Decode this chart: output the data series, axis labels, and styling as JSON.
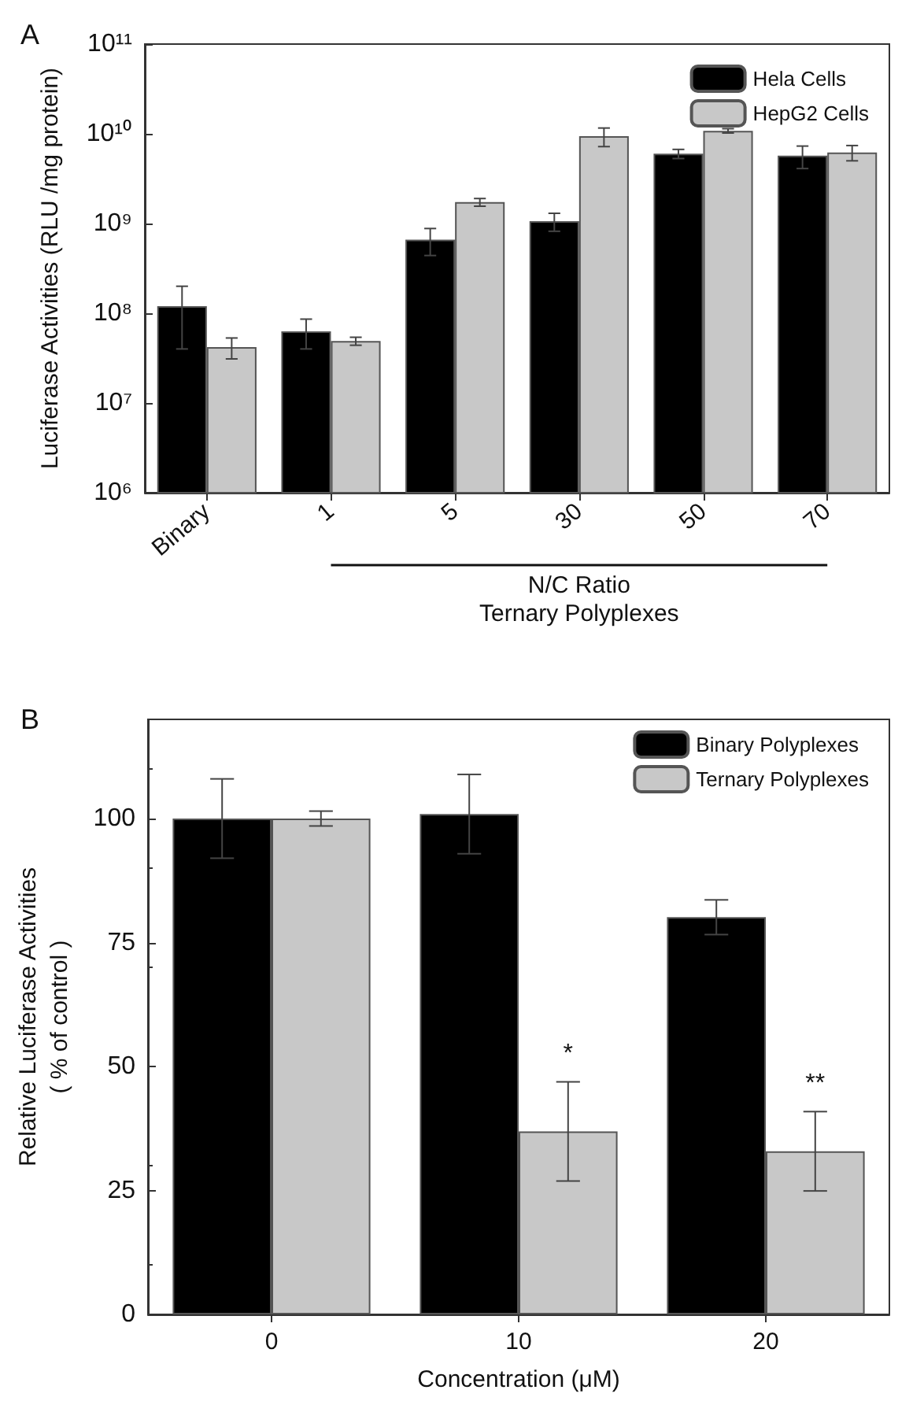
{
  "chart_data": [
    {
      "type": "bar",
      "title": "A",
      "ylabel": "Luciferase Activities (RLU /mg protein)",
      "xlabel": "N/C Ratio\nTernary Polyplexes",
      "categories": [
        "Binary",
        "1",
        "5",
        "30",
        "50",
        "70"
      ],
      "series": [
        {
          "name": "Hela Cells",
          "color": "#000000",
          "values": [
            120000000,
            63000000,
            660000000,
            1060000000,
            6000000000,
            5700000000
          ],
          "errors": [
            80000000,
            23000000,
            220000000,
            240000000,
            700000000,
            1600000000
          ]
        },
        {
          "name": "HepG2 Cells",
          "color": "#c8c8c8",
          "values": [
            42000000,
            49000000,
            1730000000,
            9400000000,
            10800000000,
            6200000000
          ],
          "errors": [
            11000000,
            5000000,
            170000000,
            2200000000,
            600000000,
            1200000000
          ]
        }
      ],
      "log": "y",
      "ylim": [
        1000000,
        100000000000
      ],
      "yticks": [
        {
          "value": 1000000,
          "label": "10⁶"
        },
        {
          "value": 10000000,
          "label": "10⁷"
        },
        {
          "value": 100000000,
          "label": "10⁸"
        },
        {
          "value": 1000000000,
          "label": "10⁹"
        },
        {
          "value": 10000000000,
          "label": "10¹⁰"
        },
        {
          "value": 100000000000,
          "label": "10¹¹"
        }
      ],
      "legend": "top right"
    },
    {
      "type": "bar",
      "title": "B",
      "ylabel": "Relative Luciferase Activities\n( % of control )",
      "xlabel": "Concentration (μM)",
      "categories": [
        "0",
        "10",
        "20"
      ],
      "series": [
        {
          "name": "Binary Polyplexes",
          "color": "#000000",
          "values": [
            100,
            100.9,
            80.1
          ],
          "errors": [
            8,
            8,
            3.5
          ]
        },
        {
          "name": "Ternary Polyplexes",
          "color": "#c8c8c8",
          "values": [
            100,
            36.9,
            32.9
          ],
          "errors": [
            1.5,
            10,
            8
          ]
        }
      ],
      "ylim": [
        0,
        120
      ],
      "yticks": [
        0,
        25,
        50,
        75,
        100
      ],
      "annotations": [
        {
          "text": "*",
          "x": "10",
          "y": 50
        },
        {
          "text": "**",
          "x": "20",
          "y": 44
        }
      ],
      "legend": "top right"
    }
  ]
}
